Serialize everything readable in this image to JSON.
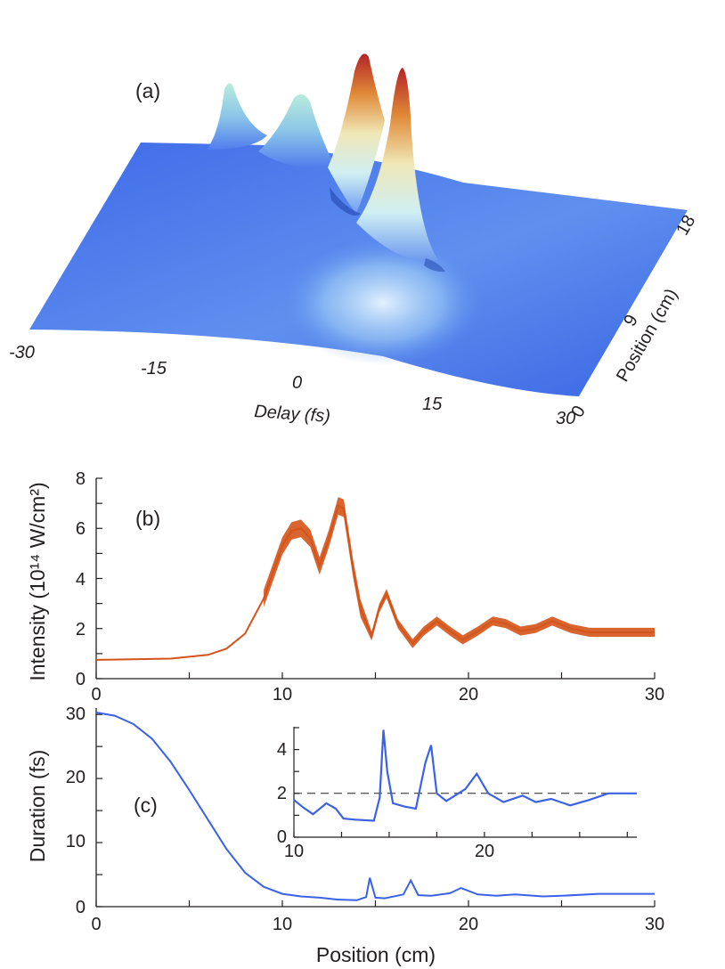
{
  "panel_a": {
    "label": "(a)",
    "xlabel": "Delay (fs)",
    "ylabel": "Position (cm)",
    "x_ticks": [
      "-30",
      "-15",
      "0",
      "15",
      "30"
    ],
    "y_ticks": [
      "0",
      "9",
      "18"
    ]
  },
  "panel_b": {
    "label": "(b)",
    "ylabel": "Intensity (10¹⁴ W/cm²)",
    "x_ticks": [
      "0",
      "10",
      "20",
      "30"
    ],
    "y_ticks": [
      "0",
      "2",
      "4",
      "6",
      "8"
    ]
  },
  "panel_c": {
    "label": "(c)",
    "xlabel": "Position (cm)",
    "ylabel": "Duration (fs)",
    "x_ticks": [
      "0",
      "10",
      "20",
      "30"
    ],
    "y_ticks": [
      "0",
      "10",
      "20",
      "30"
    ],
    "inset_x_ticks": [
      "10",
      "20"
    ],
    "inset_y_ticks": [
      "0",
      "2",
      "4"
    ]
  },
  "colors": {
    "intensity_line": "#d4541a",
    "duration_line": "#3b62e6",
    "surface_base": "#3c6ae6",
    "surface_peak": "#b8262a"
  },
  "chart_data": [
    {
      "type": "area",
      "panel": "(a)",
      "xlabel": "Delay (fs)",
      "ylabel": "Position (cm)",
      "xlim": [
        -30,
        30
      ],
      "ylim": [
        0,
        18
      ],
      "peaks": [
        {
          "delay": -4,
          "position": 16,
          "height": 0.6
        },
        {
          "delay": 0,
          "position": 14,
          "height": 0.55
        },
        {
          "delay": 3,
          "position": 12,
          "height": 1.0
        },
        {
          "delay": 5,
          "position": 9,
          "height": 0.95
        }
      ]
    },
    {
      "type": "line",
      "panel": "(b)",
      "ylabel": "Intensity (10¹⁴ W/cm²)",
      "xlim": [
        0,
        30
      ],
      "ylim": [
        0,
        8
      ],
      "x": [
        0,
        4,
        6,
        7,
        8,
        9,
        10,
        10.5,
        11,
        11.5,
        12,
        12.5,
        13,
        13.3,
        13.8,
        14.2,
        14.8,
        15.2,
        15.6,
        16.2,
        17,
        17.6,
        18.3,
        19,
        19.7,
        20.5,
        21.3,
        22,
        22.8,
        23.6,
        24.5,
        25.5,
        26.5,
        28,
        30
      ],
      "series": [
        {
          "values": [
            0.75,
            0.8,
            0.95,
            1.2,
            1.8,
            3.2,
            5.3,
            5.9,
            6.0,
            5.6,
            4.5,
            5.6,
            6.9,
            6.8,
            4.4,
            2.8,
            1.7,
            2.8,
            3.4,
            2.2,
            1.4,
            1.9,
            2.3,
            1.9,
            1.55,
            1.9,
            2.3,
            2.2,
            1.9,
            2.0,
            2.3,
            2.0,
            1.85,
            1.85,
            1.85
          ]
        }
      ]
    },
    {
      "type": "line",
      "panel": "(c)",
      "xlabel": "Position (cm)",
      "ylabel": "Duration (fs)",
      "xlim": [
        0,
        30
      ],
      "ylim": [
        0,
        31
      ],
      "x": [
        0,
        1,
        2,
        3,
        4,
        5,
        6,
        7,
        8,
        9,
        10,
        11,
        12,
        13,
        14,
        14.5,
        14.7,
        15,
        15.5,
        16.5,
        16.9,
        17.3,
        18,
        19,
        19.6,
        20.5,
        21.5,
        22.5,
        24,
        25,
        27,
        30
      ],
      "series": [
        {
          "values": [
            30.3,
            29.8,
            28.5,
            26.2,
            22.6,
            18.2,
            13.6,
            9.0,
            5.3,
            3.1,
            2.0,
            1.6,
            1.4,
            1.1,
            1.0,
            1.5,
            4.5,
            1.4,
            1.3,
            1.9,
            4.1,
            1.8,
            1.7,
            2.1,
            2.9,
            1.9,
            1.7,
            1.9,
            1.6,
            1.7,
            2.0,
            2.0
          ]
        }
      ]
    },
    {
      "type": "line",
      "panel": "(c) inset",
      "xlim": [
        10,
        28
      ],
      "ylim": [
        0,
        5
      ],
      "reference_y": 2,
      "x": [
        10,
        10.5,
        11,
        11.7,
        12.2,
        12.6,
        13.2,
        14.2,
        14.5,
        14.7,
        14.9,
        15.2,
        15.8,
        16.4,
        16.9,
        17.2,
        17.5,
        18,
        19,
        19.6,
        20.2,
        21,
        22,
        22.7,
        23.5,
        24.5,
        25.5,
        26.5,
        28
      ],
      "series": [
        {
          "values": [
            1.7,
            1.35,
            1.05,
            1.55,
            1.3,
            0.85,
            0.8,
            0.75,
            1.8,
            4.9,
            3.0,
            1.55,
            1.4,
            1.3,
            3.4,
            4.2,
            2.0,
            1.65,
            2.2,
            2.9,
            2.0,
            1.6,
            1.9,
            1.6,
            1.75,
            1.45,
            1.7,
            2.0,
            2.0
          ]
        }
      ]
    }
  ]
}
